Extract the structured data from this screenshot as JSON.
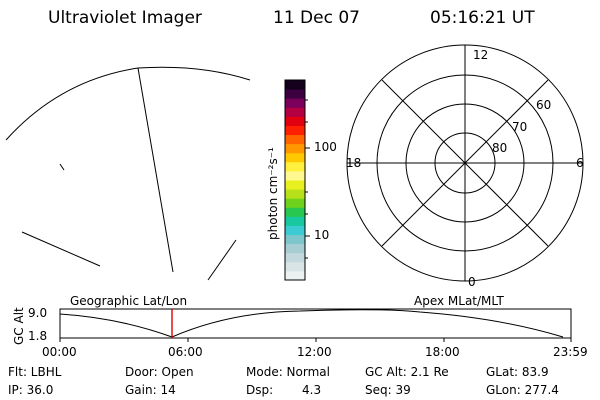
{
  "header": {
    "title": "Ultraviolet Imager",
    "date": "11 Dec 07",
    "time": "05:16:21 UT"
  },
  "colorbar": {
    "unit_label": "photon cm⁻²s⁻¹",
    "tick_100": "100",
    "tick_10": "10",
    "colors": [
      "#ecf2f2",
      "#d8e4e6",
      "#c2d8dc",
      "#a8ced4",
      "#7cc6cc",
      "#3ccbd2",
      "#18c8a0",
      "#28c850",
      "#6ed21c",
      "#b6e01a",
      "#e8f020",
      "#fff890",
      "#fff040",
      "#ffc800",
      "#ff9800",
      "#ff6400",
      "#ff2000",
      "#e00010",
      "#b40040",
      "#7a005c",
      "#3c0040",
      "#14001c"
    ]
  },
  "polar_plot": {
    "mlt_12": "12",
    "mlt_18": "18",
    "mlt_6": "6",
    "mlt_0": "0",
    "lat_60": "60",
    "lat_70": "70",
    "lat_80": "80"
  },
  "timeline": {
    "left_label": "Geographic Lat/Lon",
    "right_label": "Apex MLat/MLT",
    "y_axis_label": "GC Alt",
    "y_max": "9.0",
    "y_min": "1.8",
    "x_ticks": [
      "00:00",
      "06:00",
      "12:00",
      "18:00",
      "23:59"
    ],
    "current_marker_color": "#e00000"
  },
  "status": {
    "flt": "Flt: LBHL",
    "ip": "IP: 36.0",
    "door": "Door: Open",
    "gain": "Gain: 14",
    "mode": "Mode: Normal",
    "dsp_label": "Dsp:",
    "dsp_value": "4.3",
    "gc_alt": "GC Alt: 2.1 Re",
    "seq": "Seq: 39",
    "glat": "GLat:  83.9",
    "glon": "GLon: 277.4"
  }
}
